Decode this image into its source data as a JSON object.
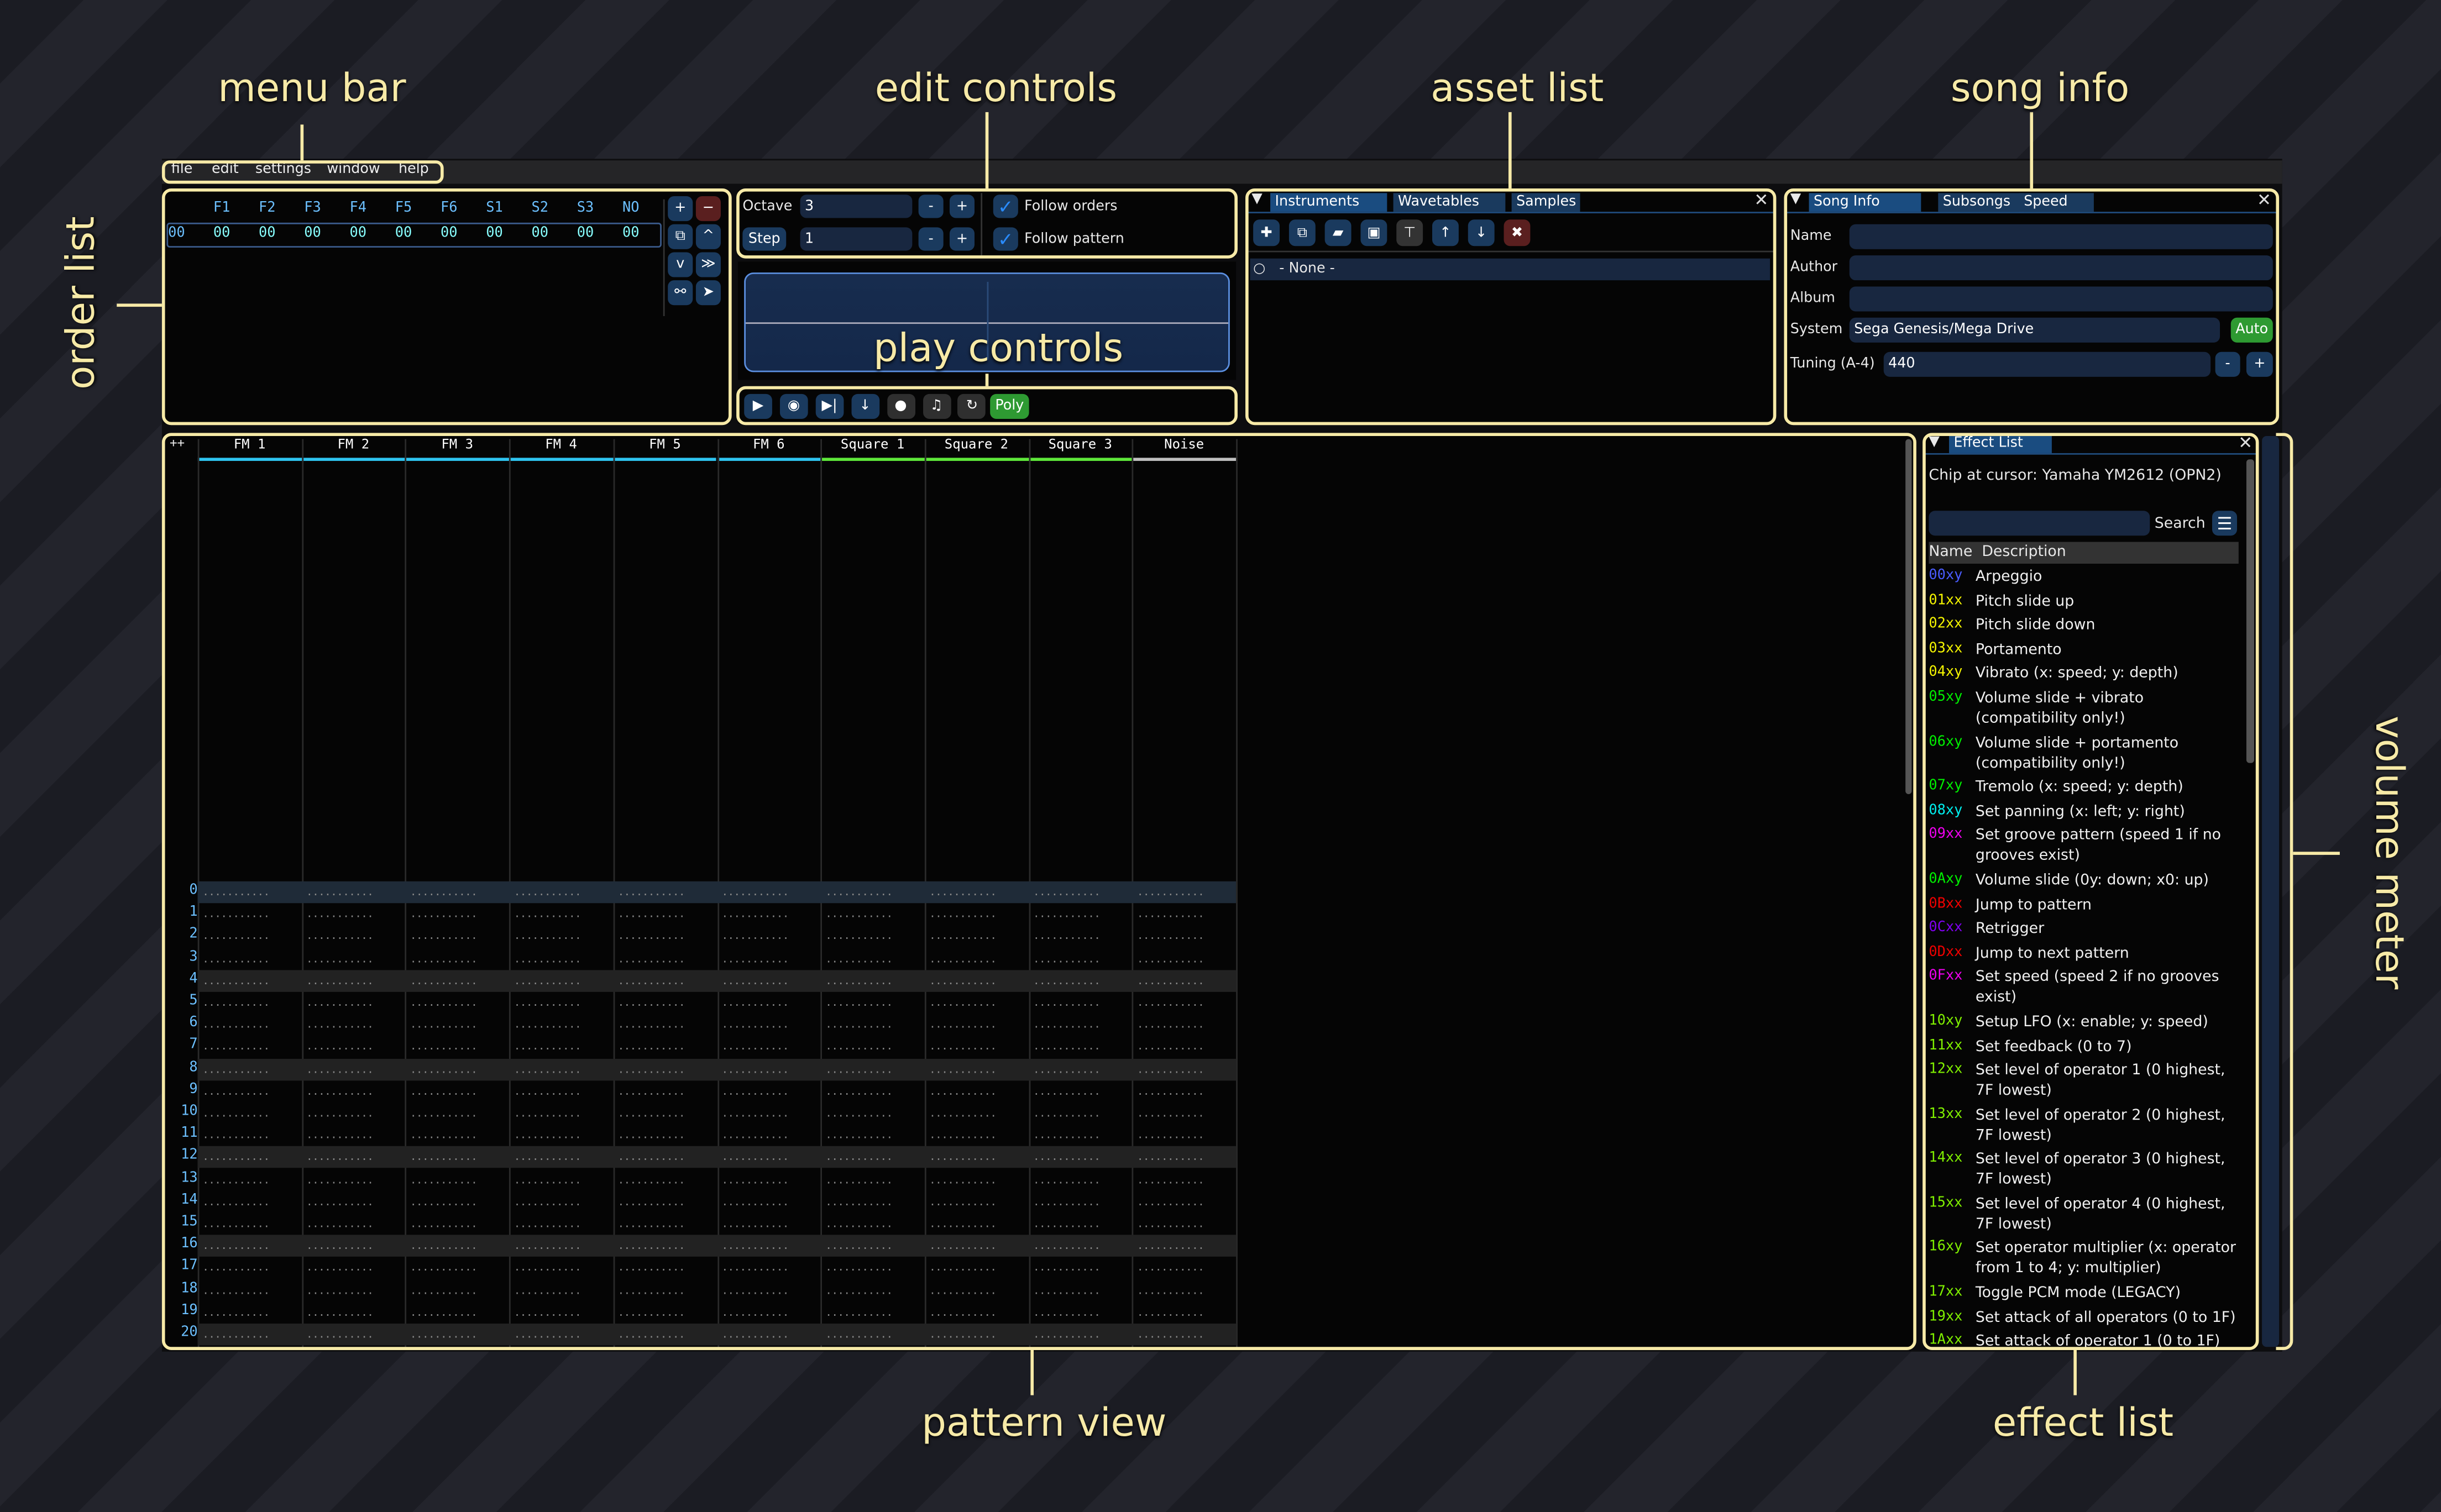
{
  "annotations": {
    "menu_bar": "menu bar",
    "edit_controls": "edit controls",
    "asset_list": "asset list",
    "song_info": "song info",
    "order_list": "order list",
    "play_controls": "play controls",
    "pattern_view": "pattern view",
    "effect_list": "effect list",
    "volume_meter": "volume meter",
    "highlight_color": "#f7eaa7"
  },
  "menu": [
    "file",
    "edit",
    "settings",
    "window",
    "help"
  ],
  "order_list": {
    "channels": [
      "F1",
      "F2",
      "F3",
      "F4",
      "F5",
      "F6",
      "S1",
      "S2",
      "S3",
      "NO"
    ],
    "rows": [
      {
        "index": "00",
        "values": [
          "00",
          "00",
          "00",
          "00",
          "00",
          "00",
          "00",
          "00",
          "00",
          "00"
        ]
      }
    ],
    "buttons": [
      {
        "name": "add-order",
        "icon": "plus-icon",
        "glyph": "+"
      },
      {
        "name": "remove-order",
        "icon": "minus-icon",
        "glyph": "−"
      },
      {
        "name": "duplicate-order",
        "icon": "copy-icon",
        "glyph": "⧉"
      },
      {
        "name": "move-order-up",
        "icon": "chevron-up-icon",
        "glyph": "^"
      },
      {
        "name": "move-order-down",
        "icon": "chevron-down-icon",
        "glyph": "v"
      },
      {
        "name": "order-to-bottom",
        "icon": "double-chevron-down-icon",
        "glyph": "≫"
      },
      {
        "name": "unlink-order",
        "icon": "unlink-icon",
        "glyph": "⚯"
      },
      {
        "name": "order-edit-mode",
        "icon": "cursor-icon",
        "glyph": "➤"
      }
    ]
  },
  "edit_controls": {
    "octave_label": "Octave",
    "octave_value": "3",
    "step_label": "Step",
    "step_value": "1",
    "minus": "-",
    "plus": "+",
    "follow_orders": "Follow orders",
    "follow_orders_checked": true,
    "follow_pattern": "Follow pattern",
    "follow_pattern_checked": true
  },
  "transport": {
    "buttons": [
      {
        "name": "play",
        "icon": "play-icon",
        "glyph": "▶"
      },
      {
        "name": "play-from-cursor",
        "icon": "play-circle-icon",
        "glyph": "◉"
      },
      {
        "name": "step-one-row",
        "icon": "step-forward-icon",
        "glyph": "▶|"
      },
      {
        "name": "stop-advance",
        "icon": "arrow-down-icon",
        "glyph": "↓"
      },
      {
        "name": "record",
        "icon": "record-icon",
        "glyph": "●"
      },
      {
        "name": "metronome",
        "icon": "bell-icon",
        "glyph": "♫"
      },
      {
        "name": "repeat-pattern",
        "icon": "repeat-icon",
        "glyph": "↻"
      }
    ],
    "poly_label": "Poly",
    "poly_color": "#2e9a32"
  },
  "asset_list": {
    "tabs": [
      "Instruments",
      "Wavetables",
      "Samples"
    ],
    "active_tab": 0,
    "toolbar": [
      {
        "name": "add",
        "icon": "plus-icon",
        "glyph": "✚"
      },
      {
        "name": "duplicate",
        "icon": "copy-icon",
        "glyph": "⧉"
      },
      {
        "name": "open",
        "icon": "folder-open-icon",
        "glyph": "▰"
      },
      {
        "name": "save",
        "icon": "save-icon",
        "glyph": "▣"
      },
      {
        "name": "tree-view",
        "icon": "sitemap-icon",
        "glyph": "⊤"
      },
      {
        "name": "move-up",
        "icon": "arrow-up-icon",
        "glyph": "↑"
      },
      {
        "name": "move-down",
        "icon": "arrow-down-icon",
        "glyph": "↓"
      },
      {
        "name": "delete",
        "icon": "delete-icon",
        "glyph": "✖"
      }
    ],
    "items": [
      "- None -"
    ]
  },
  "song_info": {
    "tabs": [
      "Song Info",
      "Subsongs",
      "Speed"
    ],
    "active_tab": 0,
    "name_label": "Name",
    "name_value": "",
    "author_label": "Author",
    "author_value": "",
    "album_label": "Album",
    "album_value": "",
    "system_label": "System",
    "system_value": "Sega Genesis/Mega Drive",
    "auto_label": "Auto",
    "tuning_label": "Tuning (A-4)",
    "tuning_value": "440",
    "minus": "-",
    "plus": "+"
  },
  "pattern": {
    "corner": "++",
    "channels": [
      {
        "name": "FM 1",
        "color": "#2ec4f0"
      },
      {
        "name": "FM 2",
        "color": "#2ec4f0"
      },
      {
        "name": "FM 3",
        "color": "#2ec4f0"
      },
      {
        "name": "FM 4",
        "color": "#2ec4f0"
      },
      {
        "name": "FM 5",
        "color": "#2ec4f0"
      },
      {
        "name": "FM 6",
        "color": "#2ec4f0"
      },
      {
        "name": "Square 1",
        "color": "#5ee83a"
      },
      {
        "name": "Square 2",
        "color": "#5ee83a"
      },
      {
        "name": "Square 3",
        "color": "#5ee83a"
      },
      {
        "name": "Noise",
        "color": "#c0c0c0"
      }
    ],
    "rows": [
      "0",
      "1",
      "2",
      "3",
      "4",
      "5",
      "6",
      "7",
      "8",
      "9",
      "10",
      "11",
      "12",
      "13",
      "14",
      "15",
      "16",
      "17",
      "18",
      "19",
      "20"
    ],
    "highlight_every": 4,
    "empty_cell": "..........."
  },
  "effect_list": {
    "title": "Effect List",
    "chip_text": "Chip at cursor: Yamaha YM2612 (OPN2)",
    "search_value": "",
    "search_label": "Search",
    "col_name": "Name",
    "col_desc": "Description",
    "effects": [
      {
        "code": "00xy",
        "desc": "Arpeggio",
        "color": "#4a5cff"
      },
      {
        "code": "01xx",
        "desc": "Pitch slide up",
        "color": "#f5f500"
      },
      {
        "code": "02xx",
        "desc": "Pitch slide down",
        "color": "#f5f500"
      },
      {
        "code": "03xx",
        "desc": "Portamento",
        "color": "#f5f500"
      },
      {
        "code": "04xy",
        "desc": "Vibrato (x: speed; y: depth)",
        "color": "#f5f500"
      },
      {
        "code": "05xy",
        "desc": "Volume slide + vibrato (compatibility only!)",
        "color": "#00f000"
      },
      {
        "code": "06xy",
        "desc": "Volume slide + portamento (compatibility only!)",
        "color": "#00f000"
      },
      {
        "code": "07xy",
        "desc": "Tremolo (x: speed; y: depth)",
        "color": "#00f000"
      },
      {
        "code": "08xy",
        "desc": "Set panning (x: left; y: right)",
        "color": "#00f0f0"
      },
      {
        "code": "09xx",
        "desc": "Set groove pattern (speed 1 if no grooves exist)",
        "color": "#f000f0"
      },
      {
        "code": "0Axy",
        "desc": "Volume slide (0y: down; x0: up)",
        "color": "#00f000"
      },
      {
        "code": "0Bxx",
        "desc": "Jump to pattern",
        "color": "#f00000"
      },
      {
        "code": "0Cxx",
        "desc": "Retrigger",
        "color": "#8000f0"
      },
      {
        "code": "0Dxx",
        "desc": "Jump to next pattern",
        "color": "#f00000"
      },
      {
        "code": "0Fxx",
        "desc": "Set speed (speed 2 if no grooves exist)",
        "color": "#f000f0"
      },
      {
        "code": "10xy",
        "desc": "Setup LFO (x: enable; y: speed)",
        "color": "#80f000"
      },
      {
        "code": "11xx",
        "desc": "Set feedback (0 to 7)",
        "color": "#80f000"
      },
      {
        "code": "12xx",
        "desc": "Set level of operator 1 (0 highest, 7F lowest)",
        "color": "#80f000"
      },
      {
        "code": "13xx",
        "desc": "Set level of operator 2 (0 highest, 7F lowest)",
        "color": "#80f000"
      },
      {
        "code": "14xx",
        "desc": "Set level of operator 3 (0 highest, 7F lowest)",
        "color": "#80f000"
      },
      {
        "code": "15xx",
        "desc": "Set level of operator 4 (0 highest, 7F lowest)",
        "color": "#80f000"
      },
      {
        "code": "16xy",
        "desc": "Set operator multiplier (x: operator from 1 to 4; y: multiplier)",
        "color": "#80f000"
      },
      {
        "code": "17xx",
        "desc": "Toggle PCM mode (LEGACY)",
        "color": "#80f000"
      },
      {
        "code": "19xx",
        "desc": "Set attack of all operators (0 to 1F)",
        "color": "#80f000"
      },
      {
        "code": "1Axx",
        "desc": "Set attack of operator 1 (0 to 1F)",
        "color": "#80f000"
      }
    ]
  }
}
